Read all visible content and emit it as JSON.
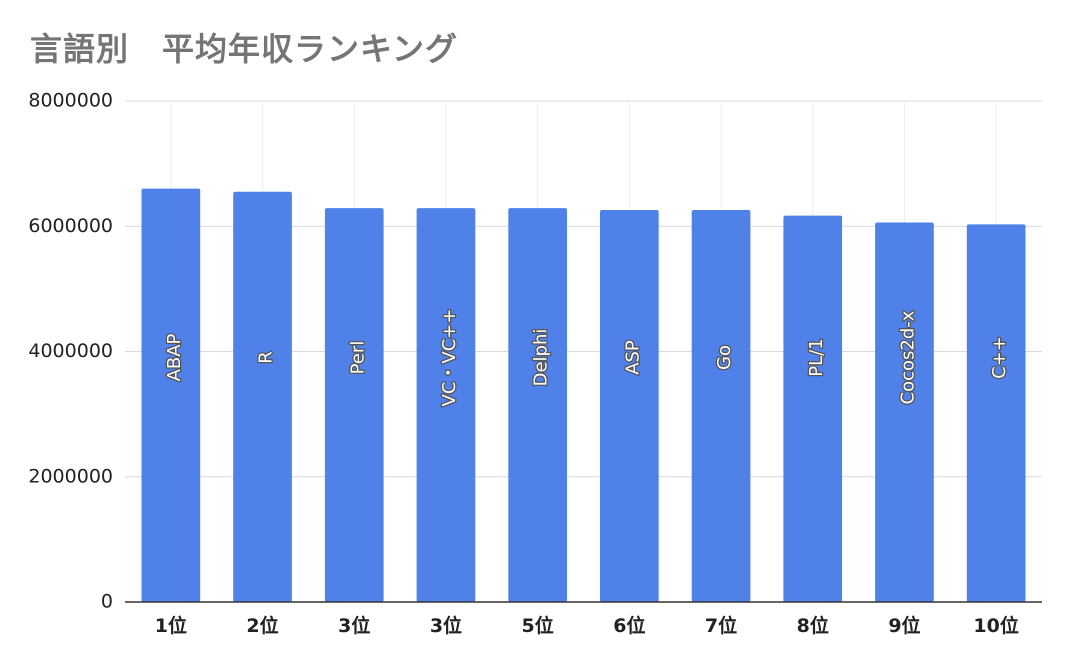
{
  "chart_data": {
    "type": "bar",
    "title": "言語別　平均年収ランキング",
    "xlabel": "",
    "ylabel": "",
    "categories": [
      "1位",
      "2位",
      "3位",
      "3位",
      "5位",
      "6位",
      "7位",
      "8位",
      "9位",
      "10位"
    ],
    "series": [
      {
        "labels": [
          "ABAP",
          "R",
          "Perl",
          "VC・VC++",
          "Delphi",
          "ASP",
          "Go",
          "PL/1",
          "Cocos2d-x",
          "C++"
        ],
        "values": [
          6600000,
          6550000,
          6290000,
          6290000,
          6290000,
          6260000,
          6260000,
          6170000,
          6060000,
          6030000
        ]
      }
    ],
    "ylim": [
      0,
      8000000
    ],
    "yticks": [
      "0",
      "2000000",
      "4000000",
      "6000000",
      "8000000"
    ],
    "grid": true,
    "legend": "none",
    "colors": {
      "bar": "#4f81e8",
      "grid": "#d9d9d9",
      "axis": "#333333"
    }
  }
}
